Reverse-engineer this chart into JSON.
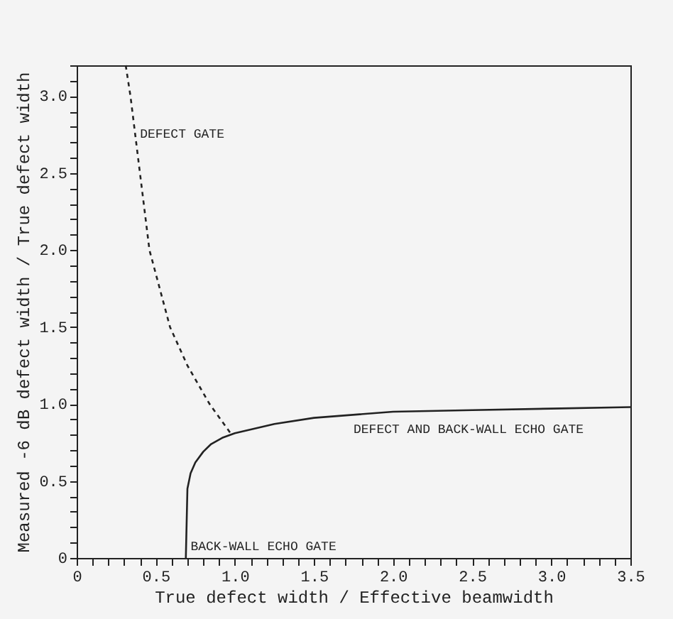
{
  "chart_data": {
    "type": "line",
    "xlabel": "True defect width / Effective beamwidth",
    "ylabel": "Measured -6 dB defect width / True defect width",
    "xlim": [
      0,
      3.5
    ],
    "ylim": [
      0,
      3.2
    ],
    "xticks": [
      0,
      {
        "value": 0.1,
        "label": null
      },
      {
        "value": 0.2,
        "label": null
      },
      {
        "value": 0.3,
        "label": null
      },
      {
        "value": 0.4,
        "label": null
      },
      0.5,
      {
        "value": 0.6,
        "label": null
      },
      {
        "value": 0.7,
        "label": null
      },
      {
        "value": 0.8,
        "label": null
      },
      {
        "value": 0.9,
        "label": null
      },
      {
        "value": 1,
        "label": "1.0"
      },
      {
        "value": 1.1,
        "label": null
      },
      {
        "value": 1.2,
        "label": null
      },
      {
        "value": 1.3,
        "label": null
      },
      {
        "value": 1.4,
        "label": null
      },
      1.5,
      {
        "value": 1.6,
        "label": null
      },
      {
        "value": 1.7,
        "label": null
      },
      {
        "value": 1.8,
        "label": null
      },
      {
        "value": 1.9,
        "label": null
      },
      {
        "value": 2,
        "label": "2.0"
      },
      {
        "value": 2.1,
        "label": null
      },
      {
        "value": 2.2,
        "label": null
      },
      {
        "value": 2.3,
        "label": null
      },
      {
        "value": 2.4,
        "label": null
      },
      2.5,
      {
        "value": 2.6,
        "label": null
      },
      {
        "value": 2.7,
        "label": null
      },
      {
        "value": 2.8,
        "label": null
      },
      {
        "value": 2.9,
        "label": null
      },
      {
        "value": 3,
        "label": "3.0"
      },
      {
        "value": 3.1,
        "label": null
      },
      {
        "value": 3.2,
        "label": null
      },
      {
        "value": 3.3,
        "label": null
      },
      {
        "value": 3.4,
        "label": null
      },
      3.5
    ],
    "yticks": [
      0,
      {
        "value": 0.1,
        "label": null
      },
      {
        "value": 0.2,
        "label": null
      },
      {
        "value": 0.3,
        "label": null
      },
      {
        "value": 0.4,
        "label": null
      },
      0.5,
      {
        "value": 0.6,
        "label": null
      },
      {
        "value": 0.7,
        "label": null
      },
      {
        "value": 0.8,
        "label": null
      },
      {
        "value": 0.9,
        "label": null
      },
      {
        "value": 1,
        "label": "1.0"
      },
      {
        "value": 1.1,
        "label": null
      },
      {
        "value": 1.2,
        "label": null
      },
      {
        "value": 1.3,
        "label": null
      },
      {
        "value": 1.4,
        "label": null
      },
      1.5,
      {
        "value": 1.6,
        "label": null
      },
      {
        "value": 1.7,
        "label": null
      },
      {
        "value": 1.8,
        "label": null
      },
      {
        "value": 1.9,
        "label": null
      },
      {
        "value": 2,
        "label": "2.0"
      },
      {
        "value": 2.1,
        "label": null
      },
      {
        "value": 2.2,
        "label": null
      },
      {
        "value": 2.3,
        "label": null
      },
      {
        "value": 2.4,
        "label": null
      },
      2.5,
      {
        "value": 2.6,
        "label": null
      },
      {
        "value": 2.7,
        "label": null
      },
      {
        "value": 2.8,
        "label": null
      },
      {
        "value": 2.9,
        "label": null
      },
      {
        "value": 3,
        "label": "3.0"
      },
      {
        "value": 3.1,
        "label": null
      },
      {
        "value": 3.2,
        "label": null
      }
    ],
    "series": [
      {
        "color": "#222222",
        "line_style": "dashed",
        "x": [
          0.31,
          0.34,
          0.4,
          0.46,
          0.59,
          0.7,
          0.84,
          0.98
        ],
        "values": [
          3.2,
          3.0,
          2.5,
          2.0,
          1.5,
          1.25,
          1.0,
          0.8
        ]
      },
      {
        "color": "#222222",
        "line_style": "solid",
        "x": [
          0.69,
          0.7,
          0.72,
          0.75,
          0.8,
          0.85,
          0.92,
          1.0,
          1.25,
          1.5,
          2.0,
          2.5,
          3.0,
          3.5
        ],
        "values": [
          0,
          0.45,
          0.55,
          0.62,
          0.69,
          0.74,
          0.78,
          0.81,
          0.87,
          0.91,
          0.95,
          0.96,
          0.97,
          0.98
        ]
      }
    ],
    "annotations": [
      {
        "text": "DEFECT GATE",
        "x": 0.4,
        "y": 2.85
      },
      {
        "text": "DEFECT AND BACK-WALL ECHO GATE",
        "x": 1.75,
        "y": 0.93
      },
      {
        "text": "BACK-WALL ECHO GATE",
        "x": 0.72,
        "y": 0.17
      }
    ],
    "grid": false
  }
}
